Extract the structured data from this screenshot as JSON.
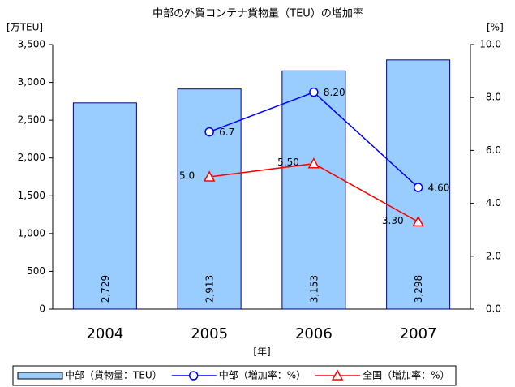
{
  "chart_data": {
    "type": "bar",
    "title": "中部の外貿コンテナ貨物量（TEU）の増加率",
    "y_label": "[万TEU]",
    "y2_label": "[%]",
    "x_label": "[年]",
    "categories": [
      "2004",
      "2005",
      "2006",
      "2007"
    ],
    "series": [
      {
        "name": "中部（貨物量：TEU）",
        "type": "bar",
        "color": "#99ccff",
        "values": [
          2729,
          2913,
          3153,
          3298
        ],
        "value_labels": [
          "2,729",
          "2,913",
          "3,153",
          "3,298"
        ]
      },
      {
        "name": "中部（増加率：%）",
        "type": "line",
        "axis": "y2",
        "color": "#0000ff",
        "marker": "circle",
        "values": [
          null,
          6.7,
          8.2,
          4.6
        ],
        "value_labels": [
          null,
          "6.7",
          "8.20",
          "4.60"
        ]
      },
      {
        "name": "全国（増加率：%）",
        "type": "line",
        "axis": "y2",
        "color": "#ff0000",
        "marker": "triangle",
        "values": [
          null,
          5.0,
          5.5,
          3.3
        ],
        "value_labels": [
          null,
          "5.0",
          "5.50",
          "3.30"
        ]
      }
    ],
    "ylim": [
      0,
      3500
    ],
    "yticks": [
      0,
      500,
      {
        "value": 1000,
        "label": "1,000"
      },
      {
        "value": 1500,
        "label": "1,500"
      },
      {
        "value": 2000,
        "label": "2,000"
      },
      {
        "value": 2500,
        "label": "2,500"
      },
      {
        "value": 3000,
        "label": "3,000"
      },
      {
        "value": 3500,
        "label": "3,500"
      }
    ],
    "y2lim": [
      0,
      10
    ],
    "y2ticks": [
      {
        "value": 0,
        "label": "0.0"
      },
      {
        "value": 2,
        "label": "2.0"
      },
      {
        "value": 4,
        "label": "4.0"
      },
      {
        "value": 6,
        "label": "6.0"
      },
      {
        "value": 8,
        "label": "8.0"
      },
      {
        "value": 10,
        "label": "10.0"
      }
    ],
    "grid": false,
    "legend": "bottom"
  }
}
